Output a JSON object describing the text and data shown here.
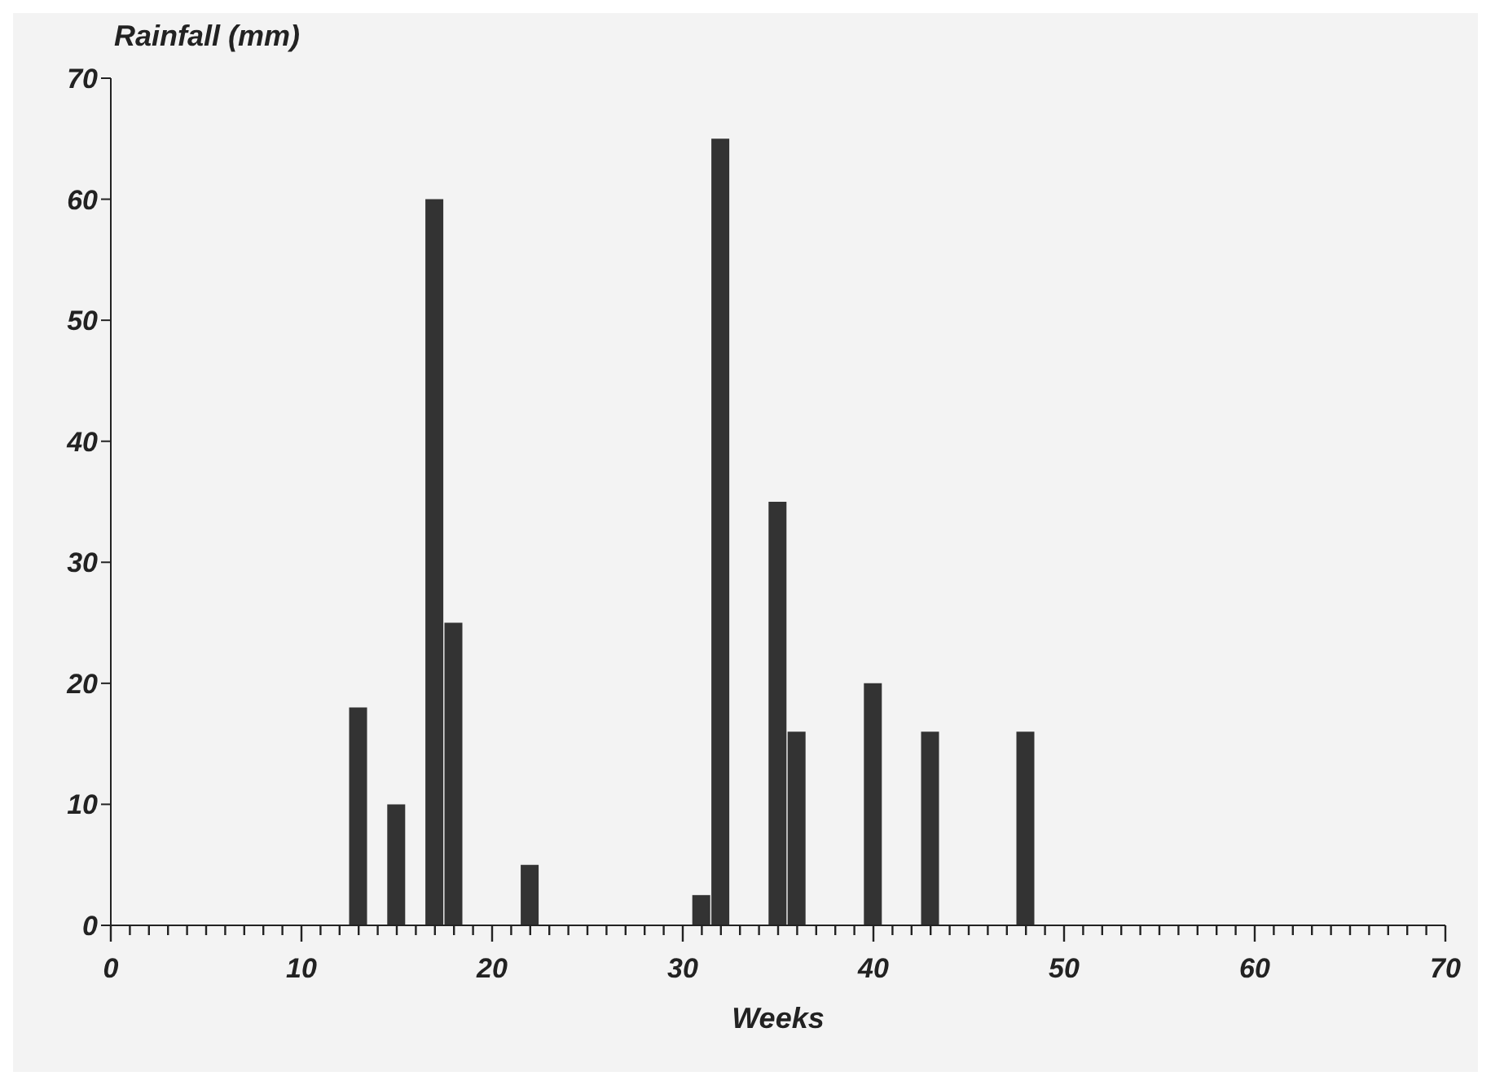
{
  "chart_data": {
    "type": "bar",
    "ylabel": "Rainfall (mm)",
    "xlabel": "Weeks",
    "x": [
      13,
      15,
      17,
      18,
      22,
      31,
      32,
      35,
      36,
      40,
      43,
      48
    ],
    "values": [
      18,
      10,
      60,
      25,
      5,
      2.5,
      65,
      35,
      16,
      20,
      16,
      16
    ],
    "color": "#333333",
    "xlim": [
      0,
      70
    ],
    "xticks": [
      0,
      {
        "value": 1,
        "label": null
      },
      {
        "value": 2,
        "label": null
      },
      {
        "value": 3,
        "label": null
      },
      {
        "value": 4,
        "label": null
      },
      {
        "value": 5,
        "label": null
      },
      {
        "value": 6,
        "label": null
      },
      {
        "value": 7,
        "label": null
      },
      {
        "value": 8,
        "label": null
      },
      {
        "value": 9,
        "label": null
      },
      10,
      {
        "value": 11,
        "label": null
      },
      {
        "value": 12,
        "label": null
      },
      {
        "value": 13,
        "label": null
      },
      {
        "value": 14,
        "label": null
      },
      {
        "value": 15,
        "label": null
      },
      {
        "value": 16,
        "label": null
      },
      {
        "value": 17,
        "label": null
      },
      {
        "value": 18,
        "label": null
      },
      {
        "value": 19,
        "label": null
      },
      20,
      {
        "value": 21,
        "label": null
      },
      {
        "value": 22,
        "label": null
      },
      {
        "value": 23,
        "label": null
      },
      {
        "value": 24,
        "label": null
      },
      {
        "value": 25,
        "label": null
      },
      {
        "value": 26,
        "label": null
      },
      {
        "value": 27,
        "label": null
      },
      {
        "value": 28,
        "label": null
      },
      {
        "value": 29,
        "label": null
      },
      30,
      {
        "value": 31,
        "label": null
      },
      {
        "value": 32,
        "label": null
      },
      {
        "value": 33,
        "label": null
      },
      {
        "value": 34,
        "label": null
      },
      {
        "value": 35,
        "label": null
      },
      {
        "value": 36,
        "label": null
      },
      {
        "value": 37,
        "label": null
      },
      {
        "value": 38,
        "label": null
      },
      {
        "value": 39,
        "label": null
      },
      40,
      {
        "value": 41,
        "label": null
      },
      {
        "value": 42,
        "label": null
      },
      {
        "value": 43,
        "label": null
      },
      {
        "value": 44,
        "label": null
      },
      {
        "value": 45,
        "label": null
      },
      {
        "value": 46,
        "label": null
      },
      {
        "value": 47,
        "label": null
      },
      {
        "value": 48,
        "label": null
      },
      {
        "value": 49,
        "label": null
      },
      50,
      {
        "value": 51,
        "label": null
      },
      {
        "value": 52,
        "label": null
      },
      {
        "value": 53,
        "label": null
      },
      {
        "value": 54,
        "label": null
      },
      {
        "value": 55,
        "label": null
      },
      {
        "value": 56,
        "label": null
      },
      {
        "value": 57,
        "label": null
      },
      {
        "value": 58,
        "label": null
      },
      {
        "value": 59,
        "label": null
      },
      60,
      {
        "value": 61,
        "label": null
      },
      {
        "value": 62,
        "label": null
      },
      {
        "value": 63,
        "label": null
      },
      {
        "value": 64,
        "label": null
      },
      {
        "value": 65,
        "label": null
      },
      {
        "value": 66,
        "label": null
      },
      {
        "value": 67,
        "label": null
      },
      {
        "value": 68,
        "label": null
      },
      {
        "value": 69,
        "label": null
      },
      70
    ],
    "ylim": [
      0,
      70
    ],
    "yticks": [
      0,
      10,
      20,
      30,
      40,
      50,
      60,
      70
    ],
    "grid": false,
    "legend": false
  }
}
